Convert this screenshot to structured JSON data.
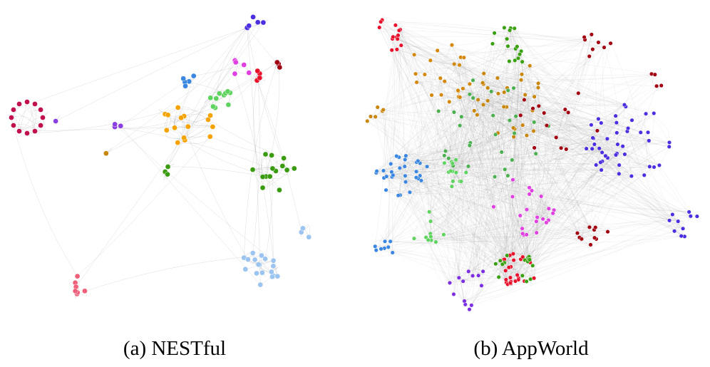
{
  "panels": [
    {
      "caption": "(a) NESTful"
    },
    {
      "caption": "(b) AppWorld"
    }
  ]
}
